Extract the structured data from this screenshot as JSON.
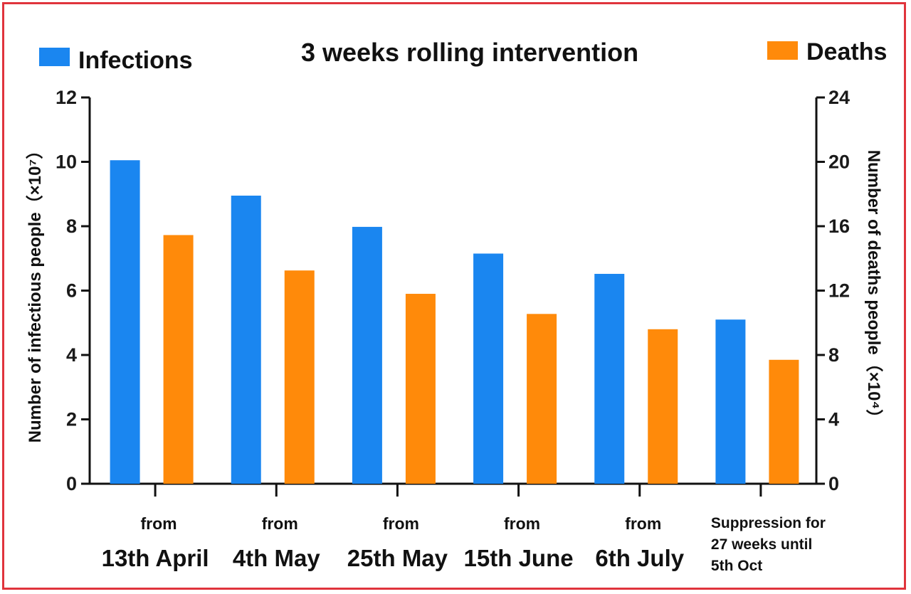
{
  "chart_data": {
    "type": "bar",
    "title": "3 weeks rolling intervention",
    "categories": [
      {
        "line1": "from",
        "line2": "13th April"
      },
      {
        "line1": "from",
        "line2": "4th May"
      },
      {
        "line1": "from",
        "line2": "25th May"
      },
      {
        "line1": "from",
        "line2": "15th June"
      },
      {
        "line1": "from",
        "line2": "6th July"
      },
      {
        "note": [
          "Suppression for",
          "27 weeks until",
          "5th Oct"
        ]
      }
    ],
    "series": [
      {
        "name": "Infections",
        "axis": "left",
        "color": "#1a86f0",
        "values": [
          10.05,
          8.95,
          7.98,
          7.15,
          6.52,
          5.1
        ]
      },
      {
        "name": "Deaths",
        "axis": "right",
        "color": "#ff8a0a",
        "values": [
          15.45,
          13.25,
          11.8,
          10.55,
          9.6,
          7.7
        ]
      }
    ],
    "y_left": {
      "label": "Number of infectious people（×10⁷）",
      "ylim": [
        0,
        12
      ],
      "ticks": [
        "0",
        "2",
        "4",
        "6",
        "8",
        "10",
        "12"
      ]
    },
    "y_right": {
      "label": "Number of deaths people（×10⁴）",
      "ylim": [
        0,
        24
      ],
      "ticks": [
        "0",
        "4",
        "8",
        "12",
        "16",
        "20",
        "24"
      ]
    },
    "legend": {
      "infections_label": "Infections",
      "deaths_label": "Deaths",
      "placement": "top"
    },
    "grid": false
  }
}
